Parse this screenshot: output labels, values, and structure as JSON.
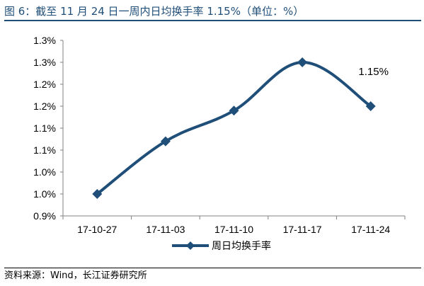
{
  "title": "图 6：截至 11 月 24 日一周内日均换手率 1.15%（单位：%）",
  "source": "资料来源：Wind，长江证券研究所",
  "colors": {
    "series": "#1f4e79",
    "axis": "#808080",
    "title": "#1f4e79"
  },
  "chart_data": {
    "type": "line",
    "categories": [
      "17-10-27",
      "17-11-03",
      "17-11-10",
      "17-11-17",
      "17-11-24"
    ],
    "y_tick_labels": [
      "1.3%",
      "1.3%",
      "1.2%",
      "1.2%",
      "1.1%",
      "1.1%",
      "1.0%",
      "1.0%",
      "0.9%"
    ],
    "ylim": [
      0.9,
      1.3
    ],
    "series": [
      {
        "name": "周日均换手率",
        "values": [
          0.95,
          1.07,
          1.14,
          1.25,
          1.15
        ],
        "marker": "diamond",
        "smooth": true
      }
    ],
    "annotations": [
      {
        "text": "1.15%",
        "category": "17-11-24"
      }
    ],
    "legend": "bottom-center",
    "grid": false
  }
}
